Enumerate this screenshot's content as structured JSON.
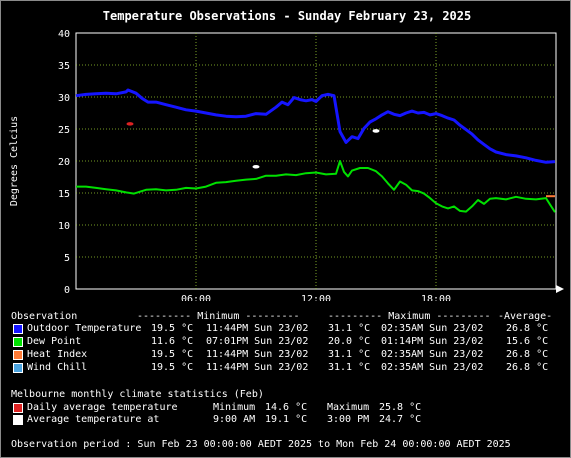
{
  "title": "Temperature Observations - Sunday February 23, 2025",
  "chart_data": {
    "type": "line",
    "title": "Temperature Observations - Sunday February 23, 2025",
    "ylabel": "Degrees Celcius",
    "xlabel": "",
    "ylim": [
      0,
      40
    ],
    "y_ticks": [
      0,
      5,
      10,
      15,
      20,
      25,
      30,
      35,
      40
    ],
    "xlim": [
      0,
      24
    ],
    "x_ticks": [
      {
        "value": 6,
        "label": "06:00"
      },
      {
        "value": 12,
        "label": "12:00"
      },
      {
        "value": 18,
        "label": "18:00"
      }
    ],
    "grid": true,
    "series": [
      {
        "name": "Outdoor Temperature",
        "color": "#1515ff",
        "x": [
          0,
          0.5,
          1,
          1.5,
          2,
          2.5,
          2.6,
          3,
          3.3,
          3.6,
          4,
          4.5,
          5,
          5.5,
          6,
          6.5,
          7,
          7.5,
          8,
          8.5,
          9,
          9.5,
          10,
          10.3,
          10.6,
          10.9,
          11.2,
          11.5,
          11.8,
          12,
          12.3,
          12.6,
          12.9,
          13.2,
          13.5,
          13.8,
          14.1,
          14.4,
          14.7,
          15,
          15.3,
          15.6,
          15.9,
          16.2,
          16.5,
          16.8,
          17.1,
          17.4,
          17.7,
          18,
          18.3,
          18.6,
          18.9,
          19.2,
          19.5,
          19.8,
          20.1,
          20.4,
          20.7,
          21,
          21.5,
          22,
          22.5,
          23,
          23.5,
          23.95
        ],
        "values": [
          30.2,
          30.4,
          30.5,
          30.6,
          30.5,
          30.8,
          31.1,
          30.6,
          29.8,
          29.2,
          29.2,
          28.8,
          28.4,
          28.0,
          27.8,
          27.5,
          27.2,
          27.0,
          26.9,
          27.0,
          27.4,
          27.3,
          28.4,
          29.2,
          28.8,
          29.9,
          29.6,
          29.4,
          29.6,
          29.3,
          30.2,
          30.4,
          30.2,
          24.6,
          22.9,
          23.8,
          23.5,
          25.1,
          26.1,
          26.6,
          27.2,
          27.7,
          27.3,
          27.1,
          27.5,
          27.8,
          27.5,
          27.6,
          27.2,
          27.4,
          27.1,
          26.7,
          26.4,
          25.6,
          24.9,
          24.2,
          23.3,
          22.6,
          21.9,
          21.4,
          21.0,
          20.8,
          20.5,
          20.1,
          19.8,
          19.9
        ]
      },
      {
        "name": "Dew Point",
        "color": "#00e000",
        "x": [
          0,
          0.5,
          1,
          1.5,
          2,
          2.5,
          2.9,
          3.2,
          3.5,
          4,
          4.5,
          5,
          5.5,
          6,
          6.5,
          7,
          7.5,
          8,
          8.5,
          9,
          9.5,
          10,
          10.5,
          11,
          11.5,
          12,
          12.5,
          13,
          13.2,
          13.4,
          13.6,
          13.8,
          14.2,
          14.6,
          15,
          15.3,
          15.6,
          15.9,
          16.2,
          16.5,
          16.8,
          17.1,
          17.4,
          17.7,
          18,
          18.3,
          18.6,
          18.9,
          19.2,
          19.5,
          19.8,
          20.1,
          20.4,
          20.7,
          21,
          21.5,
          22,
          22.5,
          23,
          23.5,
          23.7,
          23.95
        ],
        "values": [
          16.0,
          16.0,
          15.8,
          15.6,
          15.4,
          15.1,
          14.9,
          15.2,
          15.5,
          15.6,
          15.4,
          15.5,
          15.8,
          15.7,
          16.0,
          16.6,
          16.7,
          16.9,
          17.1,
          17.2,
          17.7,
          17.7,
          17.9,
          17.8,
          18.1,
          18.2,
          17.9,
          18.0,
          20.0,
          18.3,
          17.6,
          18.5,
          18.9,
          18.9,
          18.4,
          17.6,
          16.5,
          15.5,
          16.8,
          16.3,
          15.4,
          15.3,
          14.9,
          14.2,
          13.4,
          12.9,
          12.6,
          12.9,
          12.2,
          12.1,
          12.9,
          13.9,
          13.3,
          14.1,
          14.2,
          14.0,
          14.4,
          14.1,
          14.0,
          14.2,
          13.2,
          12.0
        ]
      },
      {
        "name": "Heat Index",
        "color": "#ff7b36",
        "x": [
          23.5,
          23.95
        ],
        "values": [
          14.5,
          14.5
        ]
      }
    ],
    "markers": [
      {
        "name": "Daily average temperature",
        "color": "#dd2222",
        "x": 2.7,
        "value": 25.8
      },
      {
        "name": "Average temperature at",
        "color": "#ffffff",
        "x": 9.0,
        "value": 19.1
      },
      {
        "name": "Average temperature at",
        "color": "#ffffff",
        "x": 15.0,
        "value": 24.7
      }
    ]
  },
  "legend": {
    "headers": {
      "observation": "Observation",
      "minimum": "--------- Minimum ---------",
      "maximum": "--------- Maximum ---------",
      "average": "-Average-"
    },
    "rows": [
      {
        "label": "Outdoor Temperature",
        "color": "#1515ff",
        "min_value": "19.5 °C",
        "min_time": "11:44PM Sun 23/02",
        "max_value": "31.1 °C",
        "max_time": "02:35AM Sun 23/02",
        "average": "26.8 °C"
      },
      {
        "label": "Dew Point",
        "color": "#00e000",
        "min_value": "11.6 °C",
        "min_time": "07:01PM Sun 23/02",
        "max_value": "20.0 °C",
        "max_time": "01:14PM Sun 23/02",
        "average": "15.6 °C"
      },
      {
        "label": "Heat Index",
        "color": "#ff7b36",
        "min_value": "19.5 °C",
        "min_time": "11:44PM Sun 23/02",
        "max_value": "31.1 °C",
        "max_time": "02:35AM Sun 23/02",
        "average": "26.8 °C"
      },
      {
        "label": "Wind Chill",
        "color": "#4aa3df",
        "min_value": "19.5 °C",
        "min_time": "11:44PM Sun 23/02",
        "max_value": "31.1 °C",
        "max_time": "02:35AM Sun 23/02",
        "average": "26.8 °C"
      }
    ]
  },
  "climate": {
    "heading": "Melbourne monthly climate statistics (Feb)",
    "daily": {
      "label": "Daily average temperature",
      "color": "#dd2222",
      "min_label": "Minimum",
      "min_value": "14.6 °C",
      "max_label": "Maximum",
      "max_value": "25.8 °C"
    },
    "average": {
      "label": "Average temperature at",
      "color": "#ffffff",
      "time1": "9:00 AM",
      "value1": "19.1 °C",
      "time2": "3:00 PM",
      "value2": "24.7 °C"
    }
  },
  "period": "Observation period : Sun Feb 23 00:00:00 AEDT 2025 to Mon Feb 24 00:00:00 AEDT 2025"
}
